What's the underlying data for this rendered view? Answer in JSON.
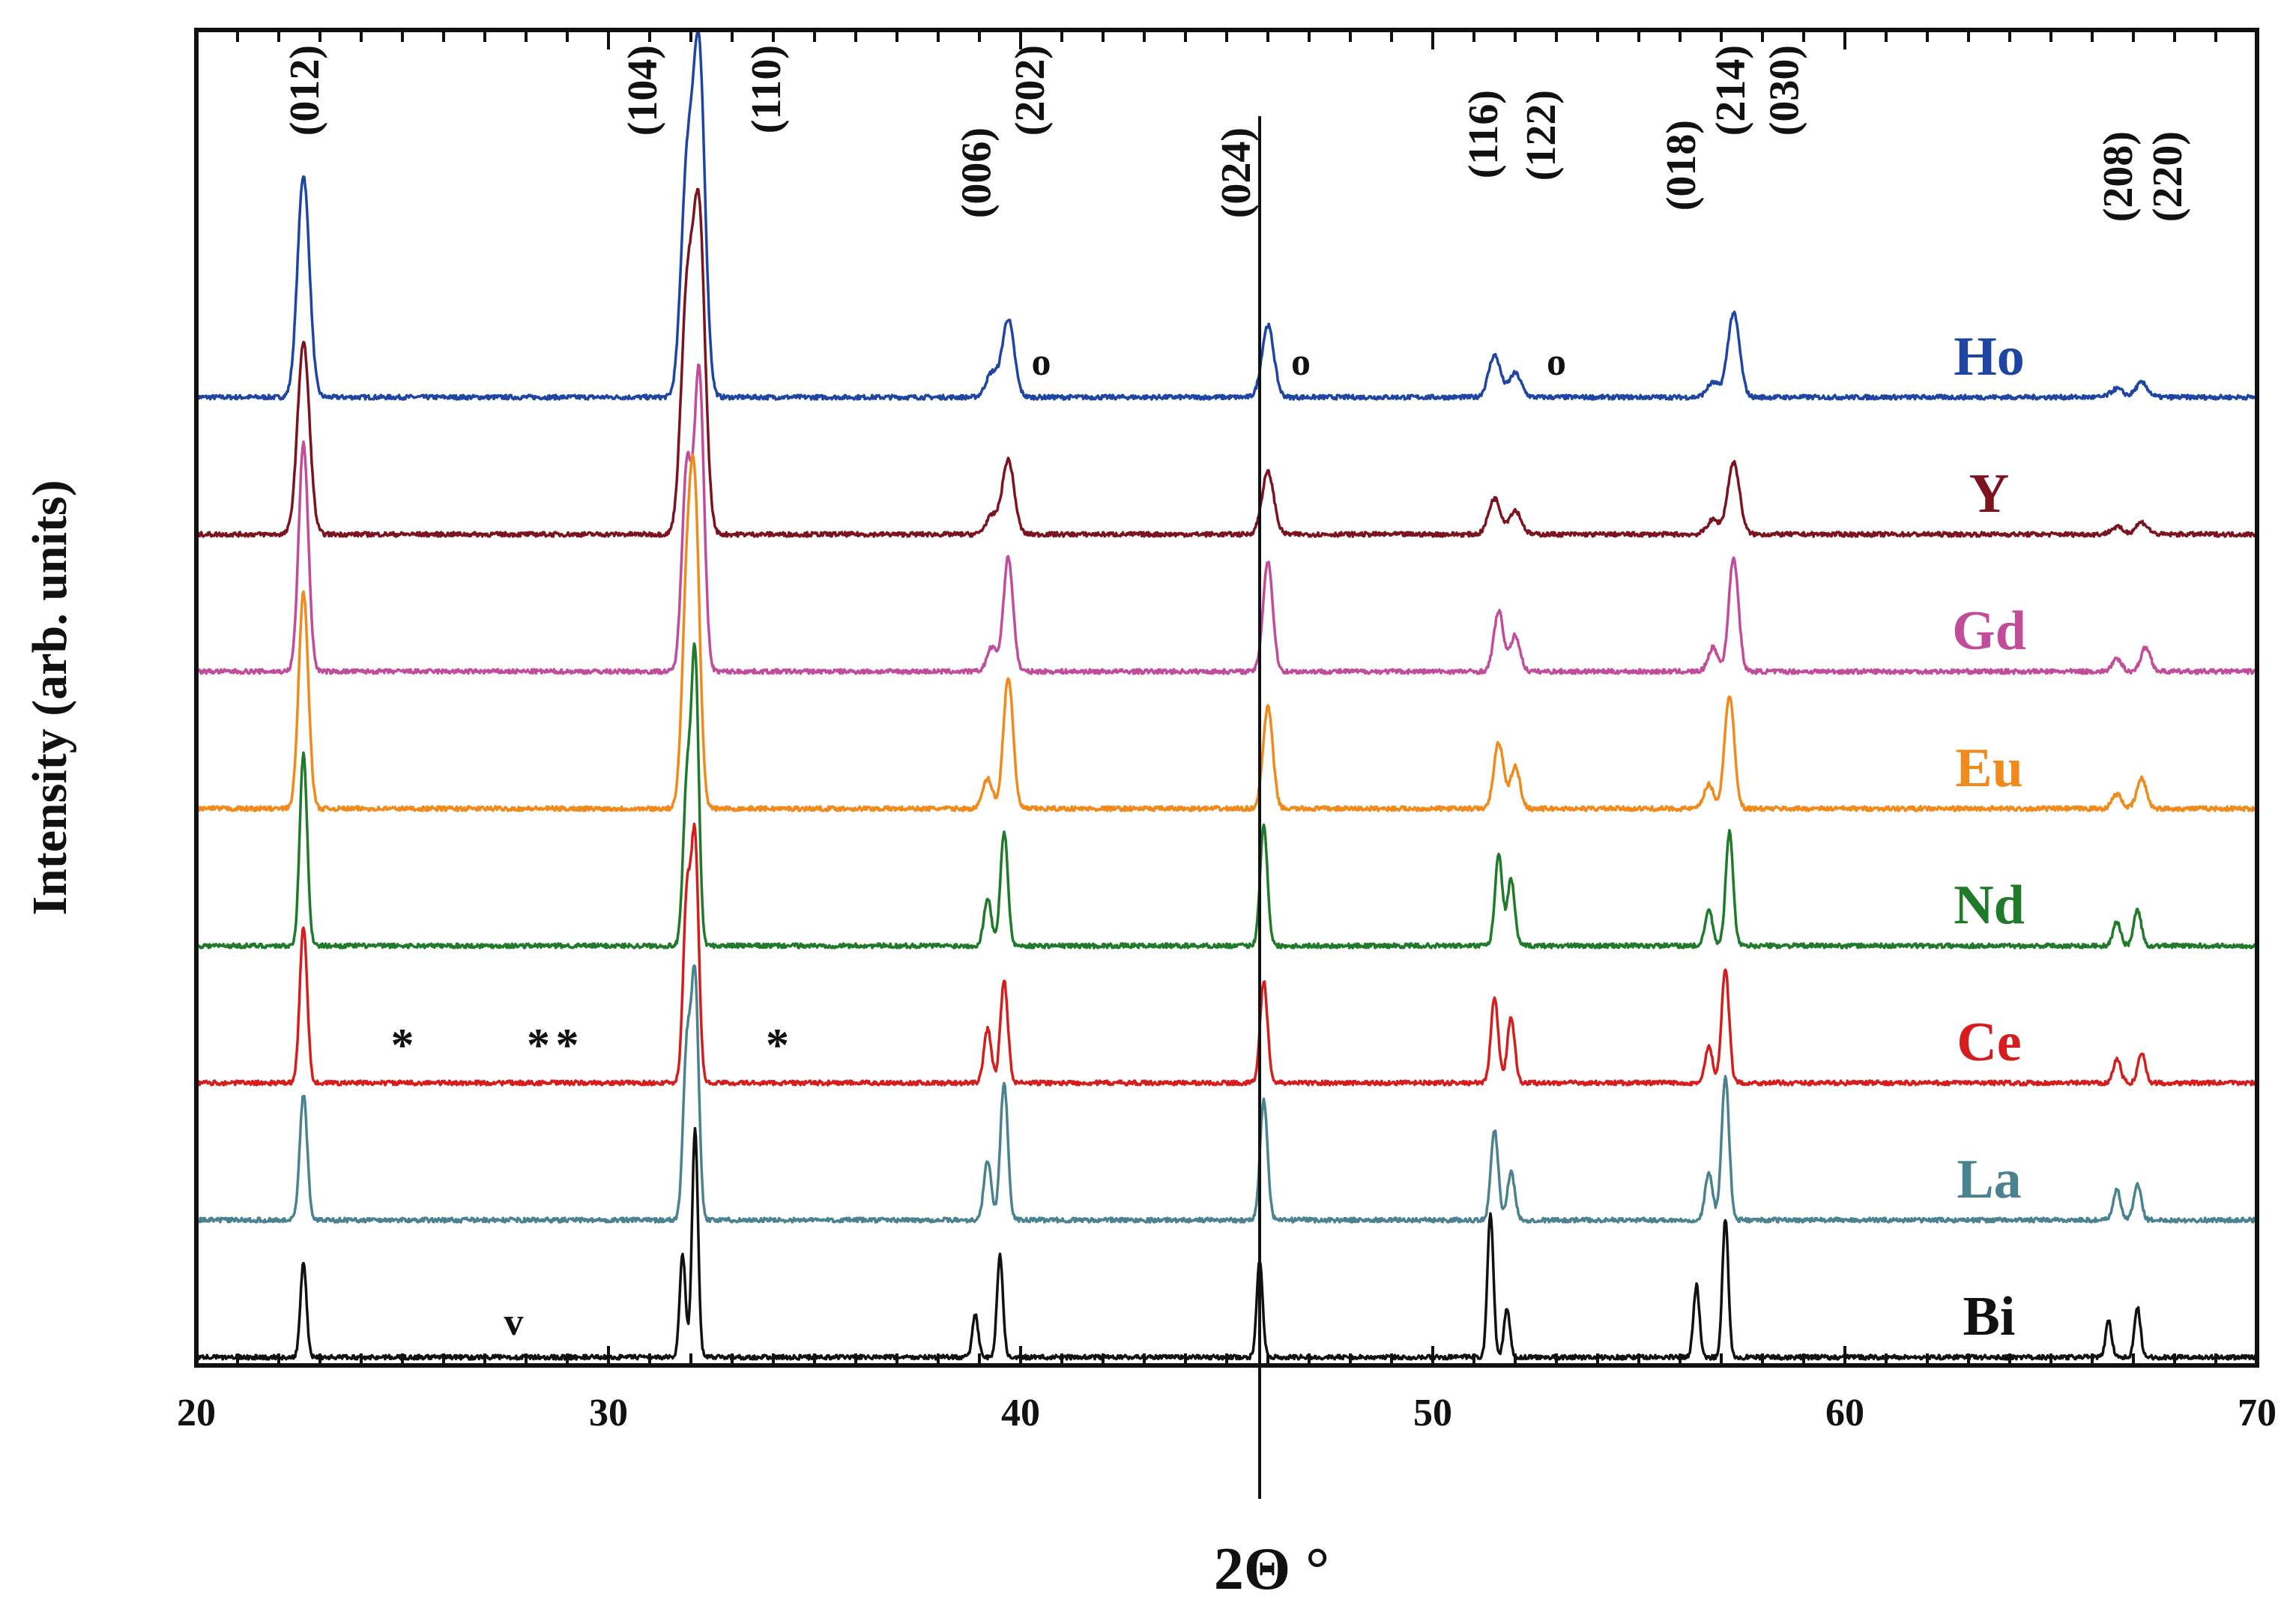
{
  "chart_data": {
    "type": "line",
    "title": "",
    "xlabel": "2Θ °",
    "ylabel": "Intensity (arb. units)",
    "xlim": [
      20,
      70
    ],
    "x_ticks": [
      "20",
      "30",
      "40",
      "50",
      "60",
      "70"
    ],
    "x_tick_values": [
      20,
      30,
      40,
      50,
      60,
      70
    ],
    "reference_line_x": 45.8,
    "series": [
      {
        "name": "Ho",
        "color": "#1f45a3",
        "baseline": 4,
        "amp": 1,
        "broad": 1.6,
        "peaks": [
          [
            22.6,
            1.85
          ],
          [
            31.9,
            1.8
          ],
          [
            32.2,
            2.8
          ],
          [
            39.3,
            0.2
          ],
          [
            39.7,
            0.65
          ],
          [
            46.0,
            0.6
          ],
          [
            51.5,
            0.35
          ],
          [
            52.0,
            0.2
          ],
          [
            56.8,
            0.12
          ],
          [
            57.3,
            0.7
          ],
          [
            66.6,
            0.07
          ],
          [
            67.2,
            0.12
          ]
        ]
      },
      {
        "name": "Y",
        "color": "#7b1420",
        "baseline": 5,
        "amp": 1,
        "broad": 1.6,
        "peaks": [
          [
            22.6,
            1.6
          ],
          [
            31.9,
            1.9
          ],
          [
            32.2,
            2.6
          ],
          [
            39.3,
            0.15
          ],
          [
            39.7,
            0.62
          ],
          [
            46.0,
            0.52
          ],
          [
            51.5,
            0.3
          ],
          [
            52.0,
            0.2
          ],
          [
            56.8,
            0.12
          ],
          [
            57.3,
            0.6
          ],
          [
            66.6,
            0.06
          ],
          [
            67.2,
            0.1
          ]
        ]
      },
      {
        "name": "Gd",
        "color": "#c04c9a",
        "baseline": 6,
        "amp": 1,
        "broad": 1.3,
        "peaks": [
          [
            22.6,
            1.9
          ],
          [
            31.9,
            1.7
          ],
          [
            32.2,
            2.5
          ],
          [
            39.3,
            0.2
          ],
          [
            39.7,
            0.95
          ],
          [
            46.0,
            0.92
          ],
          [
            51.6,
            0.5
          ],
          [
            52.0,
            0.3
          ],
          [
            56.8,
            0.2
          ],
          [
            57.3,
            0.95
          ],
          [
            66.6,
            0.1
          ],
          [
            67.3,
            0.2
          ]
        ]
      },
      {
        "name": "Eu",
        "color": "#f08a1c",
        "baseline": 7,
        "amp": 1,
        "broad": 1.3,
        "peaks": [
          [
            22.6,
            1.8
          ],
          [
            31.9,
            1.7
          ],
          [
            32.1,
            2.4
          ],
          [
            39.2,
            0.25
          ],
          [
            39.7,
            1.1
          ],
          [
            46.0,
            0.85
          ],
          [
            51.6,
            0.55
          ],
          [
            52.0,
            0.35
          ],
          [
            56.7,
            0.2
          ],
          [
            57.2,
            0.95
          ],
          [
            66.6,
            0.12
          ],
          [
            67.2,
            0.25
          ]
        ]
      },
      {
        "name": "Nd",
        "color": "#1f7a2a",
        "baseline": 8,
        "amp": 1,
        "broad": 1,
        "peaks": [
          [
            22.6,
            1.6
          ],
          [
            31.9,
            1.3
          ],
          [
            32.1,
            2.4
          ],
          [
            39.2,
            0.4
          ],
          [
            39.6,
            0.95
          ],
          [
            45.9,
            1.0
          ],
          [
            51.6,
            0.75
          ],
          [
            51.9,
            0.55
          ],
          [
            56.7,
            0.3
          ],
          [
            57.2,
            0.95
          ],
          [
            66.6,
            0.2
          ],
          [
            67.1,
            0.3
          ]
        ]
      },
      {
        "name": "Ce",
        "color": "#d61d1d",
        "baseline": 9,
        "amp": 1,
        "broad": 1,
        "peaks": [
          [
            22.6,
            1.3
          ],
          [
            31.9,
            1.5
          ],
          [
            32.1,
            2.0
          ],
          [
            39.2,
            0.45
          ],
          [
            39.6,
            0.85
          ],
          [
            45.9,
            0.85
          ],
          [
            51.5,
            0.7
          ],
          [
            51.9,
            0.55
          ],
          [
            56.7,
            0.3
          ],
          [
            57.1,
            0.95
          ],
          [
            66.6,
            0.2
          ],
          [
            67.2,
            0.25
          ]
        ]
      },
      {
        "name": "La",
        "color": "#4a8290",
        "baseline": 10,
        "amp": 1,
        "broad": 1,
        "peaks": [
          [
            22.6,
            1.05
          ],
          [
            31.9,
            1.4
          ],
          [
            32.1,
            2.0
          ],
          [
            39.2,
            0.5
          ],
          [
            39.6,
            1.15
          ],
          [
            45.9,
            1.0
          ],
          [
            51.5,
            0.75
          ],
          [
            51.9,
            0.4
          ],
          [
            56.7,
            0.4
          ],
          [
            57.1,
            1.2
          ],
          [
            66.6,
            0.25
          ],
          [
            67.1,
            0.3
          ]
        ]
      },
      {
        "name": "Bi",
        "color": "#111111",
        "baseline": 11,
        "amp": 1,
        "broad": 0.8,
        "peaks": [
          [
            22.6,
            0.8
          ],
          [
            31.8,
            0.85
          ],
          [
            32.1,
            1.9
          ],
          [
            38.9,
            0.35
          ],
          [
            39.5,
            0.85
          ],
          [
            45.8,
            0.8
          ],
          [
            51.4,
            1.2
          ],
          [
            51.8,
            0.4
          ],
          [
            56.4,
            0.6
          ],
          [
            57.1,
            1.15
          ],
          [
            66.4,
            0.3
          ],
          [
            67.1,
            0.42
          ]
        ]
      }
    ],
    "peak_labels": [
      {
        "text": "(012)",
        "x": 22.6,
        "level": 0
      },
      {
        "text": "(104)",
        "x": 30.8,
        "level": 0
      },
      {
        "text": "(110)",
        "x": 33.8,
        "level": 0
      },
      {
        "text": "(006)",
        "x": 38.9,
        "level": 1
      },
      {
        "text": "(202)",
        "x": 40.2,
        "level": 0
      },
      {
        "text": "(024)",
        "x": 45.2,
        "level": 1
      },
      {
        "text": "(116)",
        "x": 51.2,
        "level": 2
      },
      {
        "text": "(122)",
        "x": 52.6,
        "level": 2
      },
      {
        "text": "(018)",
        "x": 56.0,
        "level": 3
      },
      {
        "text": "(214)",
        "x": 57.2,
        "level": 0
      },
      {
        "text": "(030)",
        "x": 58.5,
        "level": 0
      },
      {
        "text": "(208)",
        "x": 66.6,
        "level": 4
      },
      {
        "text": "(220)",
        "x": 67.8,
        "level": 4
      }
    ],
    "impurity_markers": [
      {
        "text": "o",
        "x": 40.5,
        "series": "Ho"
      },
      {
        "text": "o",
        "x": 46.8,
        "series": "Ho"
      },
      {
        "text": "o",
        "x": 53.0,
        "series": "Ho"
      },
      {
        "text": "*",
        "x": 25.0,
        "series": "Ce"
      },
      {
        "text": "*",
        "x": 28.3,
        "series": "Ce"
      },
      {
        "text": "*",
        "x": 29.0,
        "series": "Ce"
      },
      {
        "text": "*",
        "x": 34.1,
        "series": "Ce"
      },
      {
        "text": "v",
        "x": 27.7,
        "series": "Bi"
      }
    ]
  }
}
